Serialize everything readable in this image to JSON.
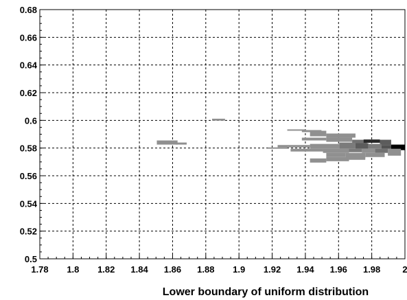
{
  "chart_data": {
    "type": "heatmap",
    "xlabel": "Lower boundary of uniform distribution",
    "ylabel": "",
    "xlim": [
      1.78,
      2.0
    ],
    "ylim": [
      0.5,
      0.68
    ],
    "x_ticks": [
      "1.78",
      "1.8",
      "1.82",
      "1.84",
      "1.86",
      "1.88",
      "1.9",
      "1.92",
      "1.94",
      "1.96",
      "1.98",
      "2"
    ],
    "y_ticks": [
      "0.5",
      "0.52",
      "0.54",
      "0.56",
      "0.58",
      "0.6",
      "0.62",
      "0.64",
      "0.66",
      "0.68"
    ],
    "grid": true,
    "colorscale": [
      "#ffffff",
      "#000000"
    ],
    "cells": [
      {
        "x0": 1.8505,
        "x1": 1.863,
        "y0": 0.5825,
        "y1": 0.5855,
        "v": 0.3
      },
      {
        "x0": 1.862,
        "x1": 1.8685,
        "y0": 0.5825,
        "y1": 0.584,
        "v": 0.3
      },
      {
        "x0": 1.8838,
        "x1": 1.8916,
        "y0": 0.5998,
        "y1": 0.6012,
        "v": 0.3
      },
      {
        "x0": 1.9291,
        "x1": 1.94,
        "y0": 0.5925,
        "y1": 0.5935,
        "v": 0.3
      },
      {
        "x0": 1.9379,
        "x1": 1.9497,
        "y0": 0.5915,
        "y1": 0.593,
        "v": 0.3
      },
      {
        "x0": 1.9428,
        "x1": 1.9526,
        "y0": 0.5885,
        "y1": 0.5925,
        "v": 0.3
      },
      {
        "x0": 1.9526,
        "x1": 1.9702,
        "y0": 0.5875,
        "y1": 0.5905,
        "v": 0.3
      },
      {
        "x0": 1.9379,
        "x1": 1.9526,
        "y0": 0.5855,
        "y1": 0.5875,
        "v": 0.3
      },
      {
        "x0": 1.9526,
        "x1": 1.9682,
        "y0": 0.5845,
        "y1": 0.5875,
        "v": 0.3
      },
      {
        "x0": 1.9682,
        "x1": 1.9771,
        "y0": 0.583,
        "y1": 0.586,
        "v": 0.45
      },
      {
        "x0": 1.9751,
        "x1": 1.9849,
        "y0": 0.5838,
        "y1": 0.5862,
        "v": 0.8
      },
      {
        "x0": 1.9849,
        "x1": 1.9917,
        "y0": 0.582,
        "y1": 0.586,
        "v": 0.55
      },
      {
        "x0": 1.9233,
        "x1": 1.9428,
        "y0": 0.5805,
        "y1": 0.5822,
        "v": 0.3
      },
      {
        "x0": 1.9428,
        "x1": 1.9604,
        "y0": 0.5795,
        "y1": 0.583,
        "v": 0.3
      },
      {
        "x0": 1.9604,
        "x1": 1.9702,
        "y0": 0.5795,
        "y1": 0.584,
        "v": 0.4
      },
      {
        "x0": 1.9702,
        "x1": 1.978,
        "y0": 0.5795,
        "y1": 0.5835,
        "v": 0.55
      },
      {
        "x0": 1.978,
        "x1": 1.9858,
        "y0": 0.5795,
        "y1": 0.583,
        "v": 0.4
      },
      {
        "x0": 1.9858,
        "x1": 1.9937,
        "y0": 0.5795,
        "y1": 0.582,
        "v": 0.6
      },
      {
        "x0": 1.9917,
        "x1": 2.0,
        "y0": 0.5785,
        "y1": 0.5825,
        "v": 1.0
      },
      {
        "x0": 1.9174,
        "x1": 1.9291,
        "y0": 0.5795,
        "y1": 0.5805,
        "v": 0.3
      },
      {
        "x0": 1.9311,
        "x1": 1.9506,
        "y0": 0.5775,
        "y1": 0.5795,
        "v": 0.3
      },
      {
        "x0": 1.9506,
        "x1": 1.9663,
        "y0": 0.5765,
        "y1": 0.5795,
        "v": 0.3
      },
      {
        "x0": 1.9663,
        "x1": 1.9741,
        "y0": 0.577,
        "y1": 0.5795,
        "v": 0.4
      },
      {
        "x0": 1.9741,
        "x1": 1.9819,
        "y0": 0.5765,
        "y1": 0.5795,
        "v": 0.3
      },
      {
        "x0": 1.9819,
        "x1": 1.9897,
        "y0": 0.5765,
        "y1": 0.5795,
        "v": 0.45
      },
      {
        "x0": 1.9897,
        "x1": 1.9976,
        "y0": 0.5745,
        "y1": 0.5795,
        "v": 0.3
      },
      {
        "x0": 1.9526,
        "x1": 1.9643,
        "y0": 0.5735,
        "y1": 0.5765,
        "v": 0.3
      },
      {
        "x0": 1.9643,
        "x1": 1.9761,
        "y0": 0.5725,
        "y1": 0.5765,
        "v": 0.3
      },
      {
        "x0": 1.9761,
        "x1": 1.9878,
        "y0": 0.5735,
        "y1": 0.5765,
        "v": 0.3
      },
      {
        "x0": 1.9428,
        "x1": 1.9526,
        "y0": 0.5695,
        "y1": 0.5725,
        "v": 0.3
      },
      {
        "x0": 1.9526,
        "x1": 1.9663,
        "y0": 0.5705,
        "y1": 0.5735,
        "v": 0.3
      },
      {
        "x0": 1.9663,
        "x1": 1.9761,
        "y0": 0.5715,
        "y1": 0.5745,
        "v": 0.3
      }
    ]
  }
}
